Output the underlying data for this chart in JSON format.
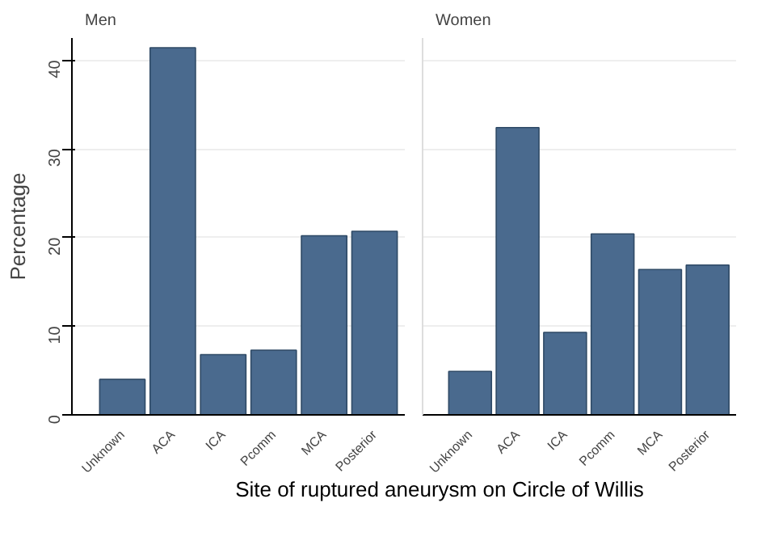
{
  "chart_data": [
    {
      "type": "bar",
      "title": "Men",
      "ylabel": "Percentage",
      "xlabel": "Site of ruptured aneurysm on Circle of Willis",
      "categories": [
        "Unknown",
        "ACA",
        "ICA",
        "Pcomm",
        "MCA",
        "Posterior"
      ],
      "values": [
        4.0,
        41.4,
        6.8,
        7.3,
        20.2,
        20.7
      ],
      "color": "#4a6a8e",
      "ylim": [
        0,
        42.5
      ],
      "yticks": [
        0,
        10,
        20,
        30,
        40
      ],
      "grid": "y"
    },
    {
      "type": "bar",
      "title": "Women",
      "categories": [
        "Unknown",
        "ACA",
        "ICA",
        "Pcomm",
        "MCA",
        "Posterior"
      ],
      "values": [
        4.9,
        32.4,
        9.3,
        20.4,
        16.4,
        16.9
      ],
      "color": "#4a6a8e",
      "ylim": [
        0,
        42.5
      ],
      "yticks": [
        0,
        10,
        20,
        30,
        40
      ],
      "grid": "y",
      "tick_labels": "x"
    }
  ]
}
